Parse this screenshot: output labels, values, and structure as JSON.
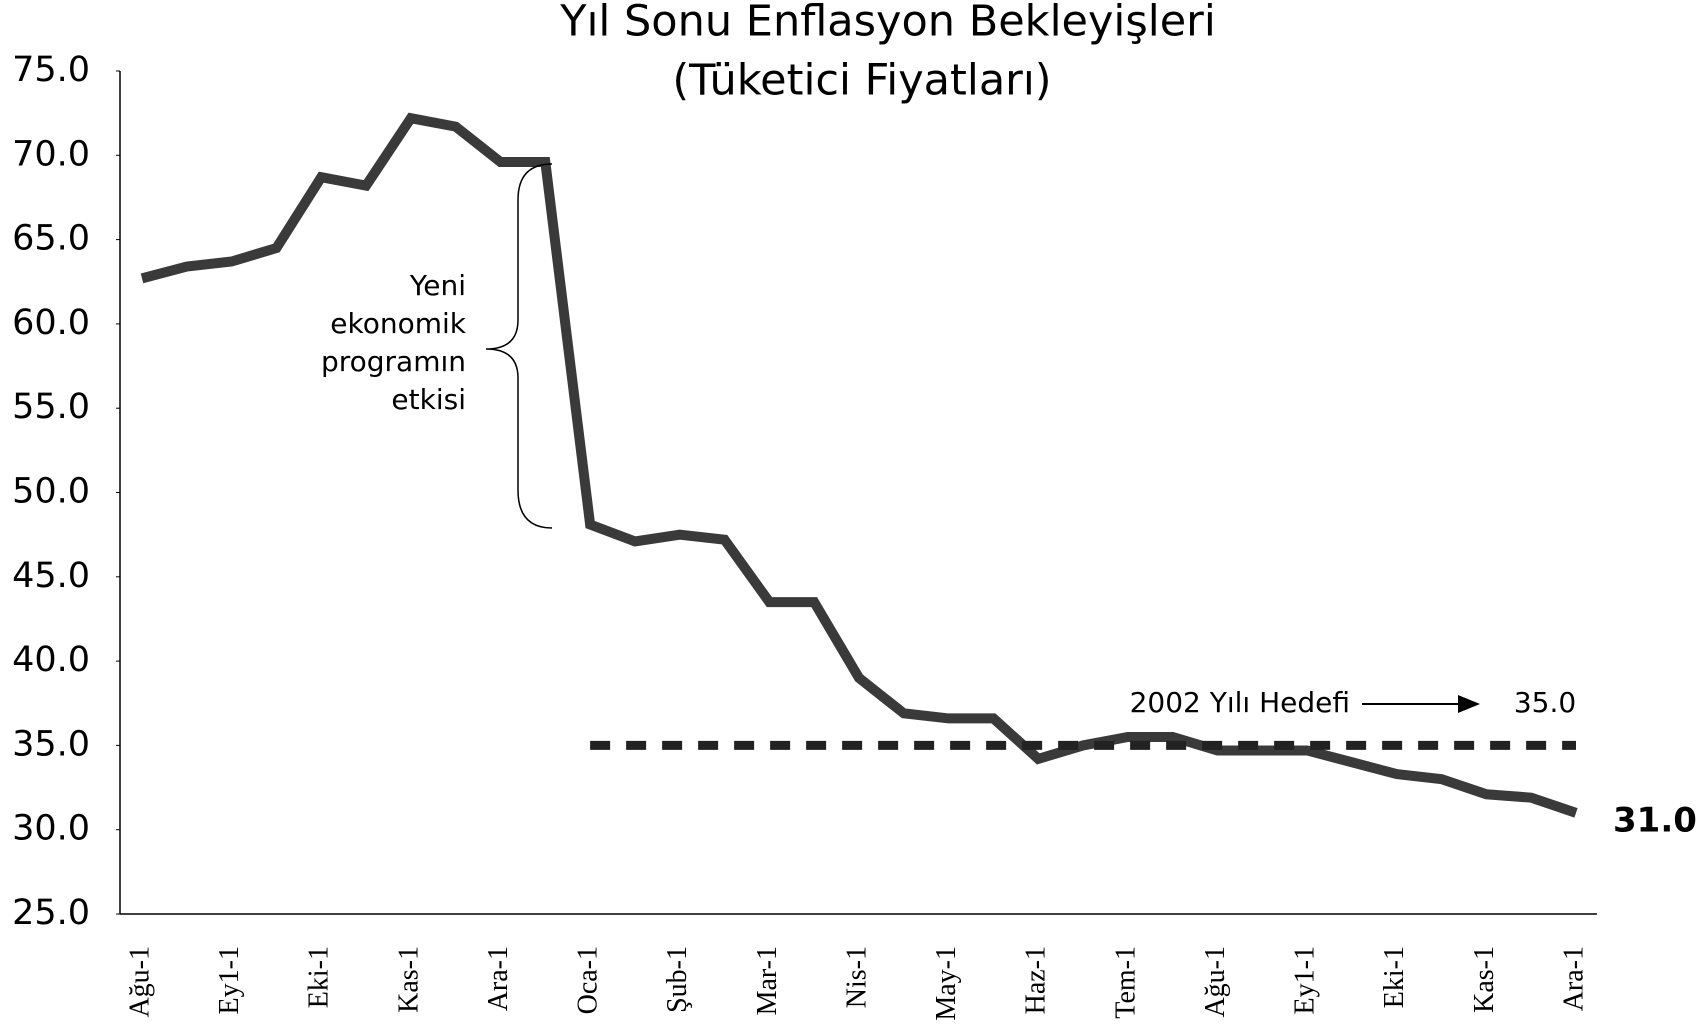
{
  "chart_data": {
    "type": "line",
    "title": "Yıl Sonu Enflasyon Bekleyişleri",
    "subtitle": "(Tüketici Fiyatları)",
    "categories": [
      "Ağu-1",
      null,
      "Ey1-1",
      null,
      "Eki-1",
      null,
      "Kas-1",
      null,
      "Ara-1",
      null,
      "Oca-1",
      null,
      "Şub-1",
      null,
      "Mar-1",
      null,
      "Nis-1",
      null,
      "May-1",
      null,
      "Haz-1",
      null,
      "Tem-1",
      null,
      "Ağu-1",
      null,
      "Ey1-1",
      null,
      "Eki-1",
      null,
      "Kas-1",
      null,
      "Ara-1"
    ],
    "series": [
      {
        "color": "#3a3a3a",
        "values": [
          62.7,
          63.4,
          63.7,
          64.5,
          68.7,
          68.2,
          72.2,
          71.7,
          69.6,
          69.6,
          48.1,
          47.1,
          47.5,
          47.2,
          43.5,
          43.5,
          39.0,
          36.9,
          36.6,
          36.6,
          34.2,
          35.0,
          35.5,
          35.5,
          34.7,
          34.7,
          34.7,
          34.0,
          33.3,
          33.0,
          32.1,
          31.9,
          31
        ],
        "value_labels": [
          null,
          null,
          null,
          null,
          null,
          null,
          null,
          null,
          null,
          null,
          null,
          null,
          null,
          null,
          null,
          null,
          null,
          null,
          null,
          null,
          null,
          null,
          null,
          null,
          null,
          null,
          null,
          null,
          null,
          null,
          null,
          null,
          "31.0"
        ]
      },
      {
        "name": "2002 Yılı Hedefi",
        "color": "#222222",
        "dashed": true,
        "values": [
          null,
          null,
          null,
          null,
          null,
          null,
          null,
          null,
          null,
          null,
          35,
          35,
          35,
          35,
          35,
          35,
          35,
          35,
          35,
          35,
          35,
          35,
          35,
          35,
          35,
          35,
          35,
          35,
          35,
          35,
          35,
          35,
          35
        ],
        "value_labels": [
          null,
          null,
          null,
          null,
          null,
          null,
          null,
          null,
          null,
          null,
          null,
          null,
          null,
          null,
          null,
          null,
          null,
          null,
          null,
          null,
          null,
          null,
          null,
          null,
          null,
          null,
          null,
          null,
          null,
          null,
          null,
          null,
          "35.0"
        ]
      }
    ],
    "annotation": [
      "Yeni",
      "ekonomik",
      "programın",
      "etkisi"
    ],
    "ylim": [
      25,
      75
    ],
    "yticks": [
      {
        "value": 25,
        "label": "25.0"
      },
      {
        "value": 30,
        "label": "30.0"
      },
      {
        "value": 35,
        "label": "35.0"
      },
      {
        "value": 40,
        "label": "40.0"
      },
      {
        "value": 45,
        "label": "45.0"
      },
      {
        "value": 50,
        "label": "50.0"
      },
      {
        "value": 55,
        "label": "55.0"
      },
      {
        "value": 60,
        "label": "60.0"
      },
      {
        "value": 65,
        "label": "65.0"
      },
      {
        "value": 70,
        "label": "70.0"
      },
      {
        "value": 75,
        "label": "75.0"
      }
    ],
    "grid": false
  }
}
